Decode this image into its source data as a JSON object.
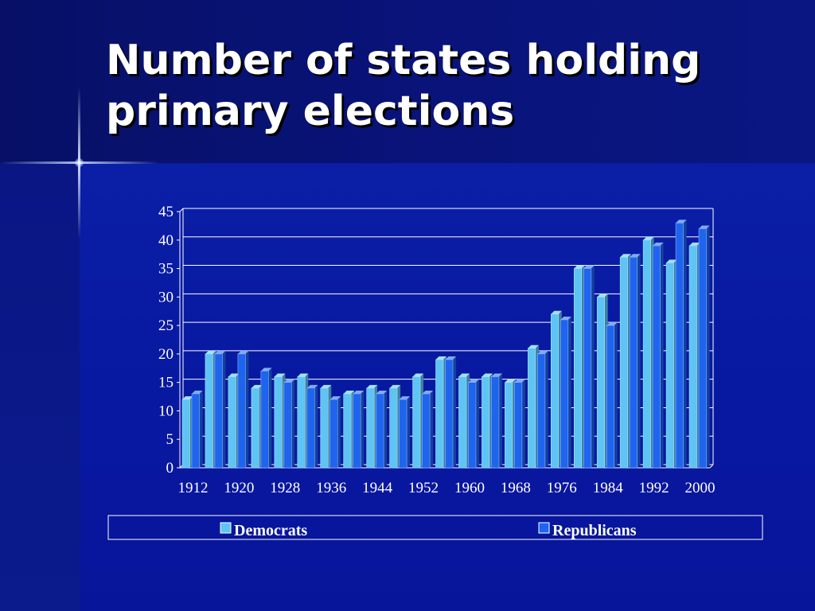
{
  "slide": {
    "title": "Number of states holding primary elections"
  },
  "colors": {
    "democrats": "#5ec4f4",
    "republicans": "#1e64ee",
    "gridline": "#ffffff",
    "text": "#ffffff"
  },
  "chart_data": {
    "type": "bar",
    "title": "Number of states holding primary elections",
    "xlabel": "",
    "ylabel": "",
    "ylim": [
      0,
      45
    ],
    "yticks": [
      0,
      5,
      10,
      15,
      20,
      25,
      30,
      35,
      40,
      45
    ],
    "grid": true,
    "legend_position": "bottom",
    "categories": [
      1912,
      1916,
      1920,
      1924,
      1928,
      1932,
      1936,
      1940,
      1944,
      1948,
      1952,
      1956,
      1960,
      1964,
      1968,
      1972,
      1976,
      1980,
      1984,
      1988,
      1992,
      1996,
      2000
    ],
    "xtick_labels": [
      "1912",
      "1920",
      "1928",
      "1936",
      "1944",
      "1952",
      "1960",
      "1968",
      "1976",
      "1984",
      "1992",
      "2000"
    ],
    "series": [
      {
        "name": "Democrats",
        "color": "#5ec4f4",
        "values": [
          12,
          20,
          16,
          14,
          16,
          16,
          14,
          13,
          14,
          14,
          16,
          19,
          16,
          16,
          15,
          21,
          27,
          35,
          30,
          37,
          40,
          36,
          39
        ]
      },
      {
        "name": "Republicans",
        "color": "#1e64ee",
        "values": [
          13,
          20,
          20,
          17,
          15,
          14,
          12,
          13,
          13,
          12,
          13,
          19,
          15,
          16,
          15,
          20,
          26,
          35,
          25,
          37,
          39,
          43,
          42
        ]
      }
    ]
  }
}
